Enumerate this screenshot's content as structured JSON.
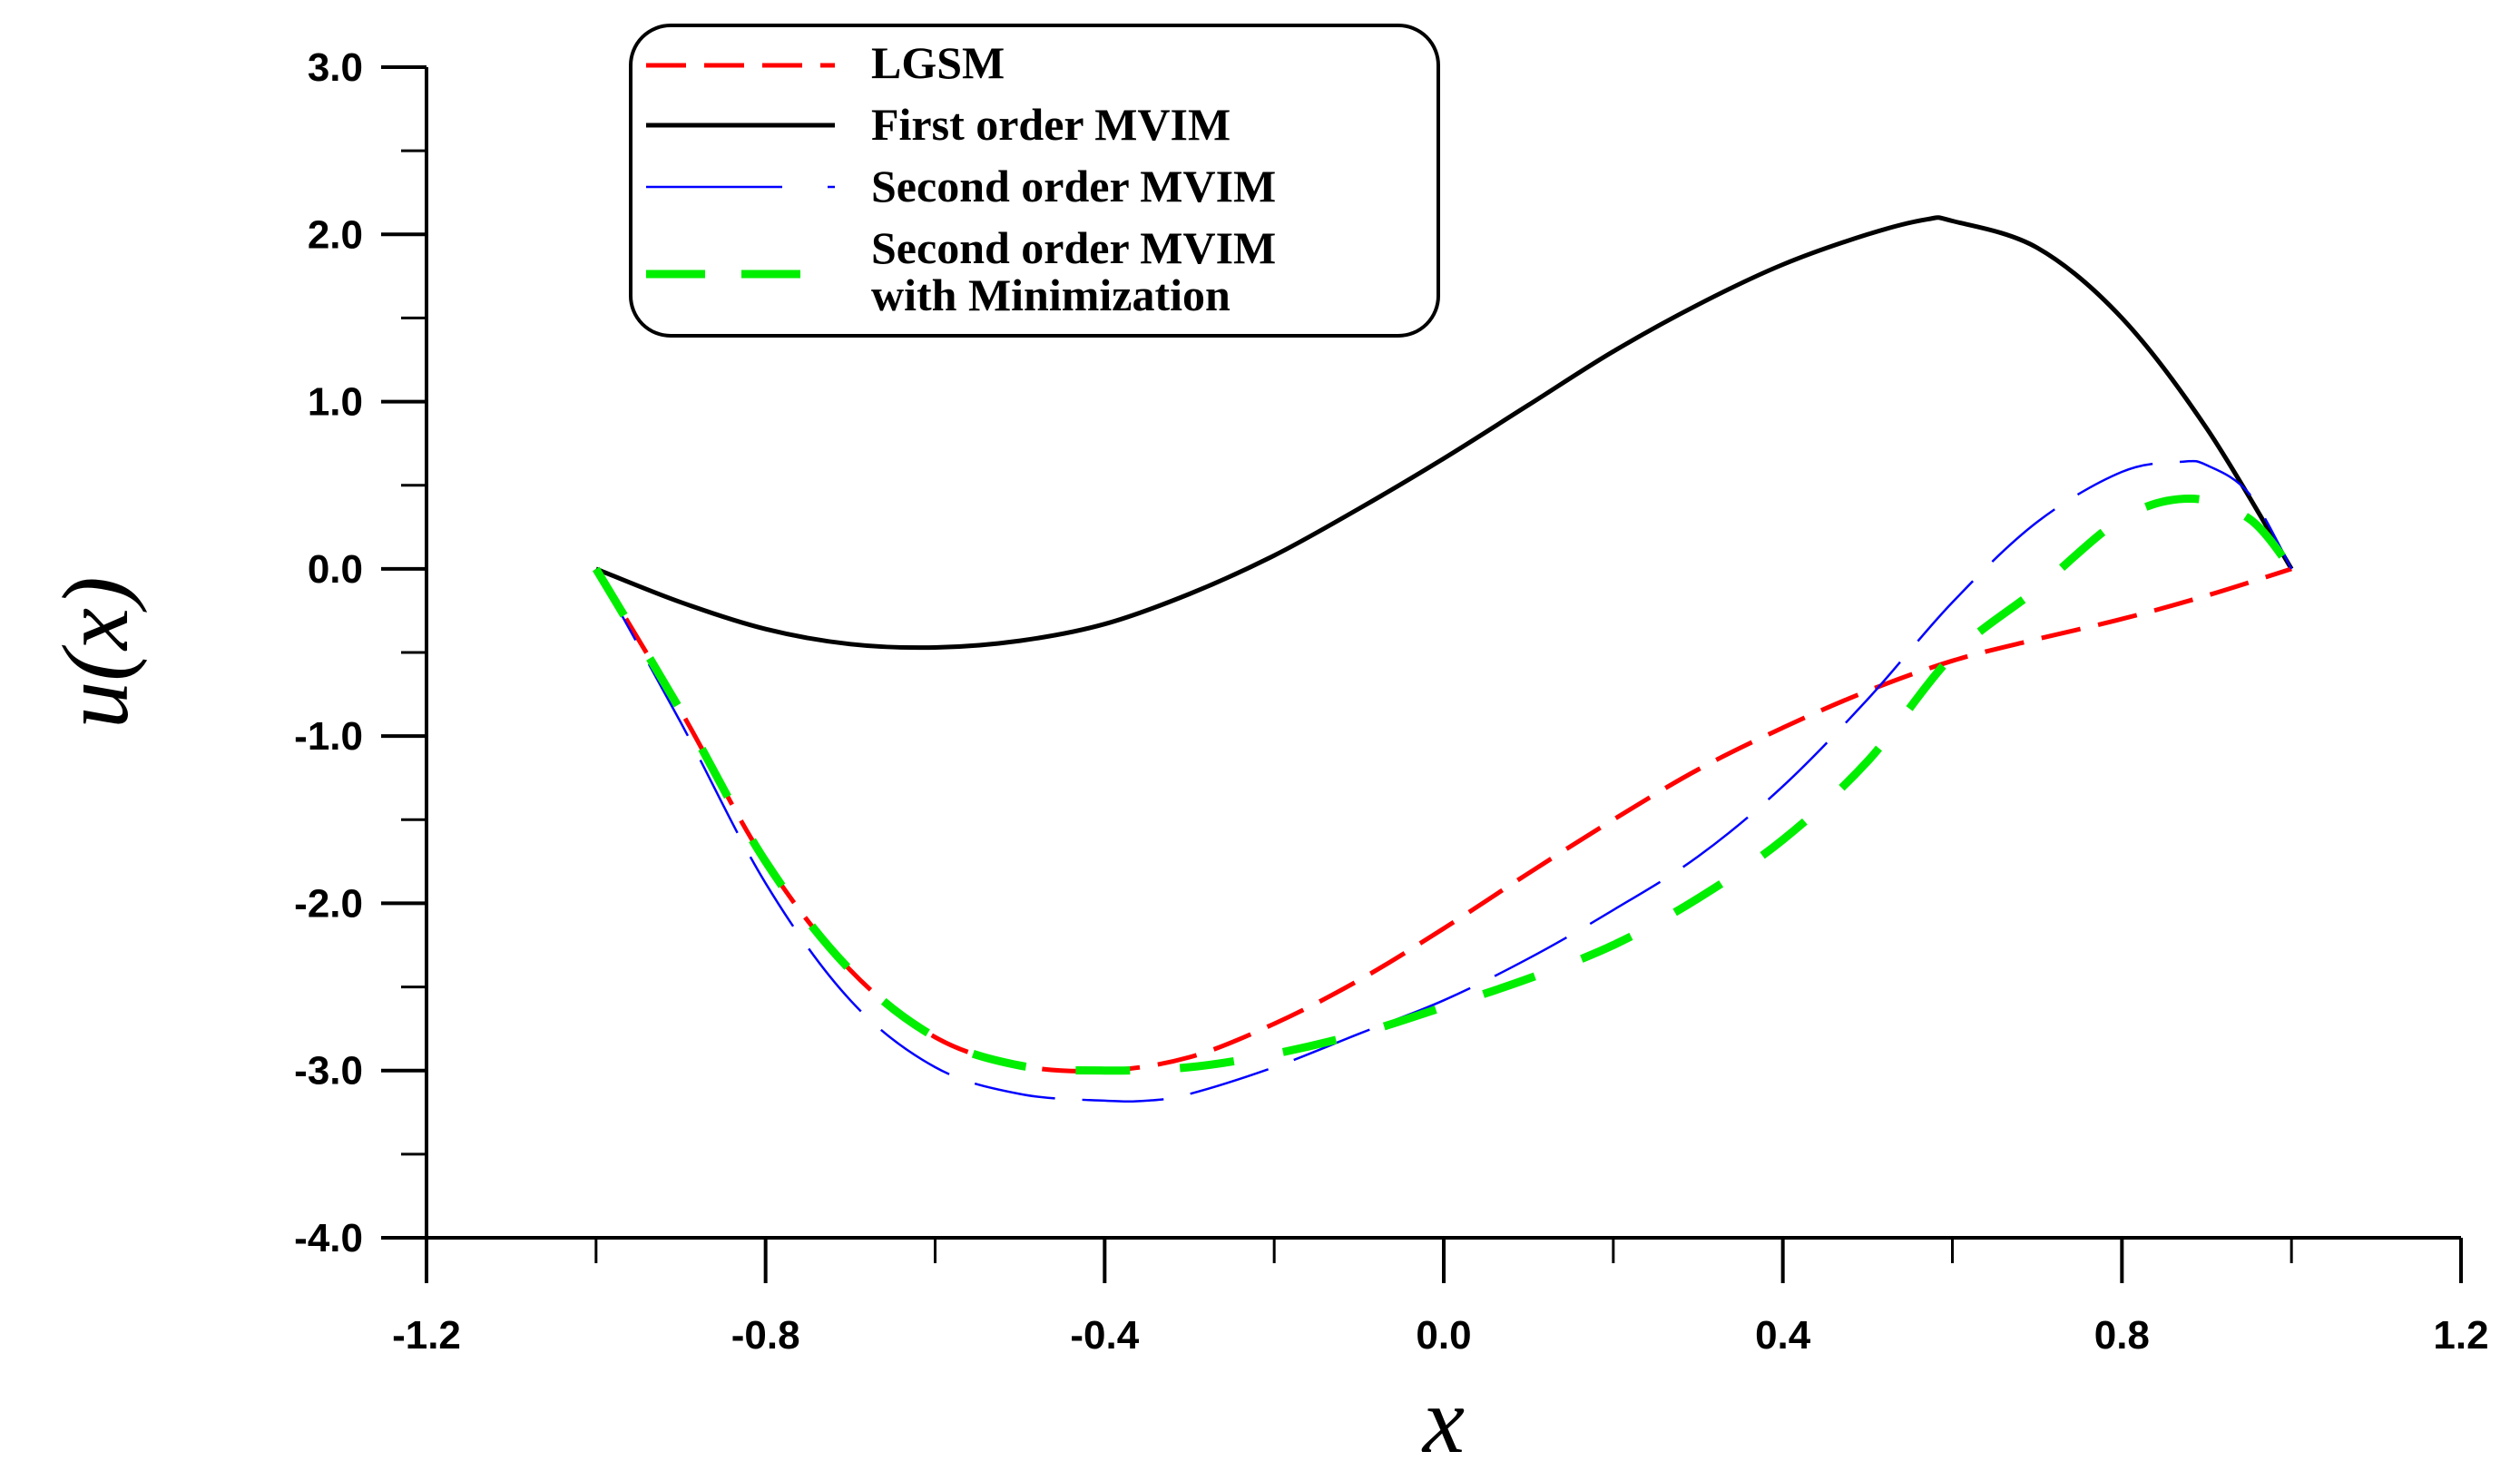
{
  "chart_data": {
    "type": "line",
    "title": "",
    "xlabel": "x",
    "ylabel": "u(x)",
    "xlim": [
      -1.2,
      1.2
    ],
    "ylim": [
      -4.0,
      3.0
    ],
    "xticks": [
      -1.2,
      -0.8,
      -0.4,
      0.0,
      0.4,
      0.8,
      1.2
    ],
    "xtick_labels": [
      "-1.2",
      "-0.8",
      "-0.4",
      "0.0",
      "0.4",
      "0.8",
      "1.2"
    ],
    "yticks": [
      3.0,
      2.0,
      1.0,
      0.0,
      -1.0,
      -2.0,
      -3.0,
      -4.0
    ],
    "ytick_labels": [
      "3.0",
      "2.0",
      "1.0",
      "0.0",
      "-1.0",
      "-2.0",
      "-3.0",
      "-4.0"
    ],
    "grid": false,
    "legend_position": "top-left",
    "series": [
      {
        "name": "LGSM",
        "legend_lines": [
          "LGSM"
        ],
        "color": "#ff0000",
        "dash": "long-dash",
        "x": [
          -1.0,
          -0.9,
          -0.8,
          -0.7,
          -0.6,
          -0.5,
          -0.4,
          -0.3,
          -0.2,
          -0.1,
          0.0,
          0.1,
          0.2,
          0.3,
          0.4,
          0.5,
          0.6,
          0.7,
          0.8,
          0.9,
          1.0
        ],
        "y": [
          0.0,
          -0.85,
          -1.75,
          -2.4,
          -2.8,
          -2.97,
          -3.0,
          -2.92,
          -2.72,
          -2.46,
          -2.15,
          -1.82,
          -1.5,
          -1.2,
          -0.95,
          -0.73,
          -0.55,
          -0.42,
          -0.3,
          -0.16,
          0.0
        ]
      },
      {
        "name": "First order MVIM",
        "legend_lines": [
          "First order MVIM"
        ],
        "color": "#000000",
        "dash": "solid",
        "x": [
          -1.0,
          -0.9,
          -0.8,
          -0.7,
          -0.6,
          -0.5,
          -0.4,
          -0.3,
          -0.2,
          -0.1,
          0.0,
          0.1,
          0.2,
          0.3,
          0.4,
          0.5,
          0.57,
          0.6,
          0.7,
          0.8,
          0.9,
          1.0
        ],
        "y": [
          0.0,
          -0.2,
          -0.36,
          -0.45,
          -0.47,
          -0.43,
          -0.33,
          -0.15,
          0.08,
          0.36,
          0.66,
          0.98,
          1.3,
          1.58,
          1.82,
          2.0,
          2.09,
          2.08,
          1.92,
          1.5,
          0.84,
          0.0
        ]
      },
      {
        "name": "Second order MVIM",
        "legend_lines": [
          "Second order MVIM"
        ],
        "color": "#0000ff",
        "dash": "thin-dash",
        "x": [
          -1.0,
          -0.9,
          -0.8,
          -0.7,
          -0.6,
          -0.5,
          -0.4,
          -0.35,
          -0.3,
          -0.2,
          -0.1,
          0.0,
          0.1,
          0.2,
          0.3,
          0.4,
          0.5,
          0.6,
          0.7,
          0.8,
          0.87,
          0.9,
          0.95,
          1.0
        ],
        "y": [
          0.0,
          -0.92,
          -1.88,
          -2.58,
          -2.98,
          -3.14,
          -3.18,
          -3.18,
          -3.14,
          -2.98,
          -2.78,
          -2.58,
          -2.33,
          -2.04,
          -1.72,
          -1.3,
          -0.78,
          -0.2,
          0.28,
          0.58,
          0.64,
          0.62,
          0.45,
          0.0
        ]
      },
      {
        "name": "Second order MVIM with Minimization",
        "legend_lines": [
          "Second order MVIM",
          "with Minimization"
        ],
        "color": "#00ee00",
        "dash": "thick-dash",
        "x": [
          -1.0,
          -0.9,
          -0.8,
          -0.7,
          -0.6,
          -0.5,
          -0.4,
          -0.3,
          -0.2,
          -0.1,
          0.0,
          0.1,
          0.2,
          0.3,
          0.4,
          0.5,
          0.6,
          0.7,
          0.8,
          0.88,
          0.95,
          1.0
        ],
        "y": [
          0.0,
          -0.85,
          -1.75,
          -2.4,
          -2.8,
          -2.97,
          -3.0,
          -2.98,
          -2.9,
          -2.78,
          -2.62,
          -2.45,
          -2.25,
          -1.97,
          -1.62,
          -1.15,
          -0.52,
          -0.12,
          0.3,
          0.42,
          0.3,
          0.0
        ]
      }
    ]
  }
}
